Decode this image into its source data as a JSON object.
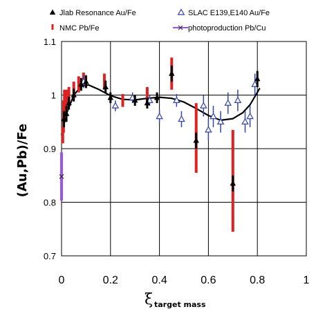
{
  "chart_data": {
    "type": "scatter",
    "ylabel": "(Au,Pb)/Fe",
    "xlabel": {
      "symbol": "ξ",
      "subscript": "target mass"
    },
    "xlim": [
      0,
      1
    ],
    "ylim": [
      0.7,
      1.1
    ],
    "x_ticks": [
      "0",
      "0.2",
      "0.4",
      "0.6",
      "0.8",
      "1"
    ],
    "y_ticks": [
      "0.7",
      "0.8",
      "0.9",
      "1",
      "1.1"
    ],
    "grid": true,
    "legend_position": "top",
    "series": [
      {
        "name": "Jlab Resonance Au/Fe",
        "marker": "filled-triangle",
        "color": "#000000",
        "points": [
          {
            "x": 0.01,
            "y": 0.955,
            "err": 0.015
          },
          {
            "x": 0.02,
            "y": 0.965,
            "err": 0.015
          },
          {
            "x": 0.03,
            "y": 0.985,
            "err": 0.012
          },
          {
            "x": 0.05,
            "y": 1.0,
            "err": 0.012
          },
          {
            "x": 0.08,
            "y": 1.02,
            "err": 0.012
          },
          {
            "x": 0.1,
            "y": 1.025,
            "err": 0.012
          },
          {
            "x": 0.18,
            "y": 1.015,
            "err": 0.012
          },
          {
            "x": 0.2,
            "y": 0.995,
            "err": 0.01
          },
          {
            "x": 0.3,
            "y": 0.99,
            "err": 0.01
          },
          {
            "x": 0.35,
            "y": 0.985,
            "err": 0.01
          },
          {
            "x": 0.39,
            "y": 0.995,
            "err": 0.01
          },
          {
            "x": 0.45,
            "y": 1.04,
            "err": 0.015
          },
          {
            "x": 0.55,
            "y": 0.915,
            "err": 0.015
          },
          {
            "x": 0.7,
            "y": 0.835,
            "err": 0.015
          },
          {
            "x": 0.8,
            "y": 1.03,
            "err": 0.015
          }
        ]
      },
      {
        "name": "SLAC E139,E140 Au/Fe",
        "marker": "open-triangle",
        "color": "#3344aa",
        "points": [
          {
            "x": 0.09,
            "y": 1.025,
            "err": 0.012
          },
          {
            "x": 0.22,
            "y": 0.98,
            "err": 0.01
          },
          {
            "x": 0.29,
            "y": 0.995,
            "err": 0.01
          },
          {
            "x": 0.36,
            "y": 0.99,
            "err": 0.01
          },
          {
            "x": 0.4,
            "y": 0.96,
            "err": 0.012
          },
          {
            "x": 0.47,
            "y": 0.99,
            "err": 0.012
          },
          {
            "x": 0.49,
            "y": 0.955,
            "err": 0.015
          },
          {
            "x": 0.58,
            "y": 0.98,
            "err": 0.02
          },
          {
            "x": 0.6,
            "y": 0.935,
            "err": 0.02
          },
          {
            "x": 0.62,
            "y": 0.96,
            "err": 0.02
          },
          {
            "x": 0.65,
            "y": 0.95,
            "err": 0.02
          },
          {
            "x": 0.68,
            "y": 0.985,
            "err": 0.02
          },
          {
            "x": 0.72,
            "y": 0.99,
            "err": 0.02
          },
          {
            "x": 0.75,
            "y": 0.95,
            "err": 0.02
          },
          {
            "x": 0.77,
            "y": 0.96,
            "err": 0.02
          },
          {
            "x": 0.79,
            "y": 1.02,
            "err": 0.02
          }
        ]
      },
      {
        "name": "NMC Pb/Fe",
        "marker": "errorbar",
        "color": "#dd2222",
        "points": [
          {
            "x": 0.005,
            "y": 0.925,
            "err": 0.015
          },
          {
            "x": 0.008,
            "y": 0.96,
            "err": 0.03
          },
          {
            "x": 0.012,
            "y": 0.98,
            "err": 0.03
          },
          {
            "x": 0.02,
            "y": 0.99,
            "err": 0.02
          },
          {
            "x": 0.03,
            "y": 1.0,
            "err": 0.015
          },
          {
            "x": 0.05,
            "y": 1.01,
            "err": 0.015
          },
          {
            "x": 0.07,
            "y": 1.02,
            "err": 0.015
          },
          {
            "x": 0.09,
            "y": 1.03,
            "err": 0.012
          },
          {
            "x": 0.175,
            "y": 1.025,
            "err": 0.015
          },
          {
            "x": 0.25,
            "y": 0.99,
            "err": 0.012
          },
          {
            "x": 0.35,
            "y": 1.0,
            "err": 0.015
          },
          {
            "x": 0.45,
            "y": 1.04,
            "err": 0.03
          },
          {
            "x": 0.55,
            "y": 0.92,
            "err": 0.065
          },
          {
            "x": 0.7,
            "y": 0.84,
            "err": 0.095
          }
        ]
      },
      {
        "name": "photoproduction Pb/Cu",
        "marker": "cross",
        "color": "#9955ee",
        "points": [
          {
            "x": 0.0,
            "y": 0.848,
            "err": 0.045
          }
        ]
      }
    ],
    "fit_curve": {
      "color": "#000000",
      "points": [
        {
          "x": 0.0,
          "y": 0.925
        },
        {
          "x": 0.02,
          "y": 0.965
        },
        {
          "x": 0.05,
          "y": 1.0
        },
        {
          "x": 0.08,
          "y": 1.016
        },
        {
          "x": 0.11,
          "y": 1.019
        },
        {
          "x": 0.15,
          "y": 1.011
        },
        {
          "x": 0.2,
          "y": 0.999
        },
        {
          "x": 0.25,
          "y": 0.992
        },
        {
          "x": 0.3,
          "y": 0.991
        },
        {
          "x": 0.35,
          "y": 0.994
        },
        {
          "x": 0.4,
          "y": 0.996
        },
        {
          "x": 0.45,
          "y": 0.994
        },
        {
          "x": 0.5,
          "y": 0.987
        },
        {
          "x": 0.55,
          "y": 0.975
        },
        {
          "x": 0.6,
          "y": 0.962
        },
        {
          "x": 0.65,
          "y": 0.953
        },
        {
          "x": 0.7,
          "y": 0.956
        },
        {
          "x": 0.74,
          "y": 0.967
        },
        {
          "x": 0.77,
          "y": 0.982
        },
        {
          "x": 0.8,
          "y": 1.005
        },
        {
          "x": 0.81,
          "y": 1.013
        }
      ]
    }
  }
}
